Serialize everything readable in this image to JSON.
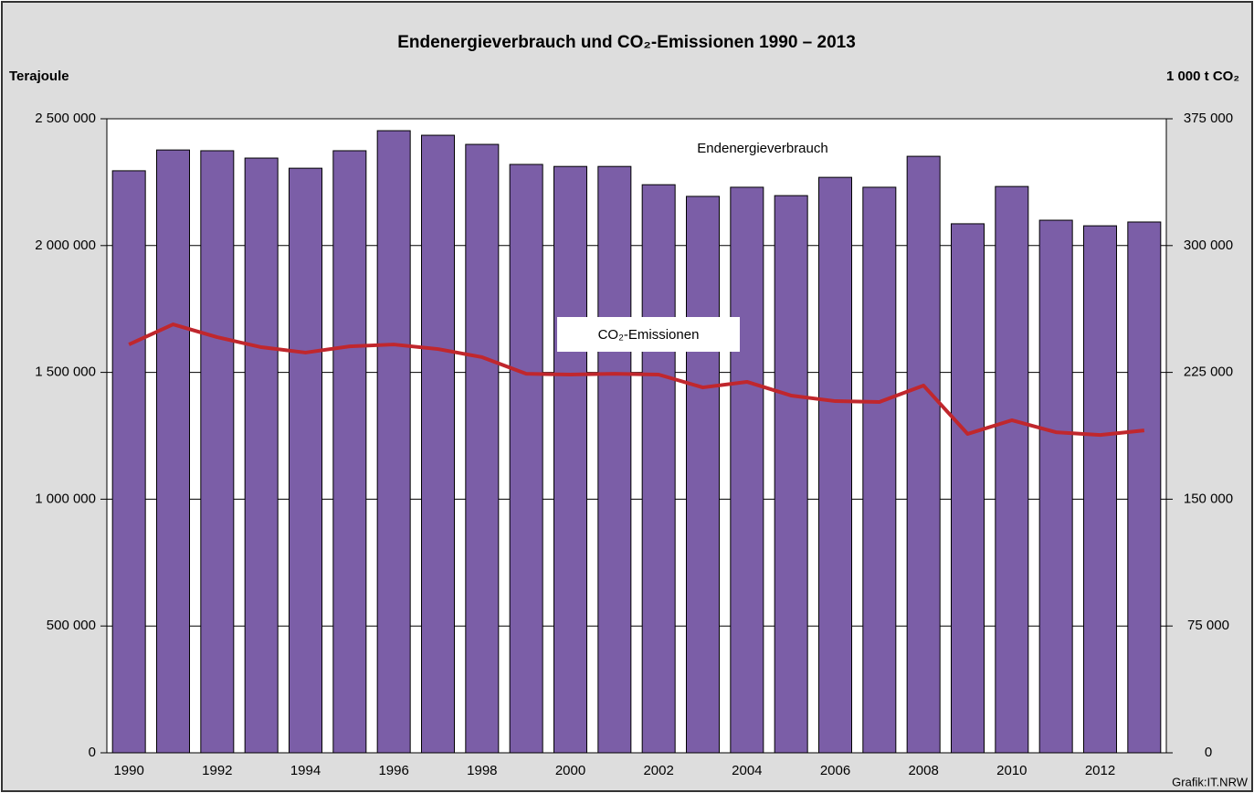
{
  "chart_data": {
    "type": "bar",
    "title": "Endenergieverbrauch und CO₂-Emissionen 1990 – 2013",
    "y_label": "Terajoule",
    "y2_label": "1 000 t CO₂",
    "source": "Grafik:IT.NRW",
    "categories": [
      "1990",
      null,
      "1992",
      null,
      "1994",
      null,
      "1996",
      null,
      "1998",
      null,
      "2000",
      null,
      "2002",
      null,
      "2004",
      null,
      "2006",
      null,
      "2008",
      null,
      "2010",
      null,
      "2012",
      null
    ],
    "series": [
      {
        "name": "Endenergieverbrauch",
        "type": "bar",
        "color": "#7b5ea7",
        "axis": "y",
        "values": [
          2295000,
          2377000,
          2374000,
          2345000,
          2305000,
          2374000,
          2453000,
          2435000,
          2399000,
          2320000,
          2312000,
          2312000,
          2240000,
          2194000,
          2230000,
          2197000,
          2269000,
          2230000,
          2352000,
          2086000,
          2233000,
          2100000,
          2078000,
          2093000
        ]
      },
      {
        "name": "CO₂-Emissionen",
        "type": "line",
        "color": "#c0272d",
        "axis": "y2",
        "values": [
          241500,
          253400,
          245800,
          239900,
          236700,
          240400,
          241500,
          238800,
          234000,
          224200,
          223700,
          224200,
          223700,
          216100,
          219400,
          211300,
          208000,
          207500,
          217200,
          188600,
          196700,
          189600,
          188000,
          190700
        ]
      }
    ],
    "ylim": [
      0,
      2500000
    ],
    "yticks": [
      0,
      {
        "value": 500000,
        "label": "500 000"
      },
      {
        "value": 1000000,
        "label": "1 000 000"
      },
      {
        "value": 1500000,
        "label": "1 500 000"
      },
      {
        "value": 2000000,
        "label": "2 000 000"
      },
      {
        "value": 2500000,
        "label": "2 500 000"
      }
    ],
    "y2lim": [
      0,
      375000
    ],
    "y2ticks": [
      0,
      {
        "value": 75000,
        "label": "75 000"
      },
      {
        "value": 150000,
        "label": "150 000"
      },
      {
        "value": 225000,
        "label": "225 000"
      },
      {
        "value": 300000,
        "label": "300 000"
      },
      {
        "value": 375000,
        "label": "375 000"
      }
    ],
    "grid": true
  }
}
